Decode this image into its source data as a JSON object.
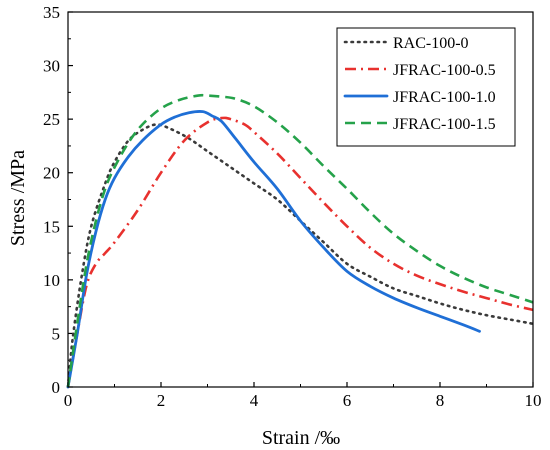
{
  "chart_data": {
    "type": "line",
    "title": "",
    "xlabel": "Strain /‰",
    "ylabel": "Stress /MPa",
    "xlim": [
      0,
      10
    ],
    "ylim": [
      0,
      35
    ],
    "xticks": [
      "0",
      "2",
      "4",
      "6",
      "8",
      "10"
    ],
    "yticks": [
      "0",
      "5",
      "10",
      "15",
      "20",
      "25",
      "30",
      "35"
    ],
    "grid": false,
    "legend_position": "top-right",
    "series": [
      {
        "name": "RAC-100-0",
        "color": "#3a3a3a",
        "dash": "dotted",
        "x": [
          0,
          0.1,
          0.3,
          0.5,
          0.8,
          1.0,
          1.3,
          1.6,
          1.9,
          2.2,
          2.6,
          3.0,
          3.5,
          4.0,
          4.5,
          5.0,
          5.5,
          6.0,
          6.5,
          7.0,
          7.5,
          8.0,
          8.5,
          9.0,
          9.5,
          10.0
        ],
        "y": [
          0,
          4.5,
          10.5,
          15.0,
          19.0,
          21.0,
          23.0,
          24.0,
          24.5,
          24.1,
          23.2,
          22.0,
          20.5,
          19.0,
          17.5,
          15.5,
          13.5,
          11.5,
          10.3,
          9.2,
          8.5,
          7.8,
          7.2,
          6.7,
          6.3,
          5.9
        ]
      },
      {
        "name": "JFRAC-100-0.5",
        "color": "#e8312e",
        "dash": "dashdot",
        "x": [
          0,
          0.2,
          0.4,
          0.6,
          0.8,
          1.0,
          1.5,
          2.0,
          2.5,
          3.0,
          3.3,
          3.5,
          3.8,
          4.0,
          4.5,
          5.0,
          5.5,
          6.0,
          6.5,
          7.0,
          7.5,
          8.0,
          8.5,
          9.0,
          9.5,
          10.0
        ],
        "y": [
          0,
          5.0,
          9.5,
          11.5,
          12.5,
          13.5,
          16.5,
          20.0,
          23.0,
          24.7,
          25.1,
          25.0,
          24.5,
          23.8,
          21.8,
          19.5,
          17.2,
          15.0,
          13.0,
          11.5,
          10.4,
          9.6,
          8.9,
          8.3,
          7.7,
          7.2
        ]
      },
      {
        "name": "JFRAC-100-1.0",
        "color": "#1f6fd6",
        "dash": "dashdotlong",
        "x": [
          0,
          0.2,
          0.4,
          0.6,
          0.8,
          1.0,
          1.3,
          1.6,
          2.0,
          2.3,
          2.6,
          2.9,
          3.1,
          3.3,
          3.6,
          4.0,
          4.5,
          5.0,
          5.5,
          6.0,
          6.5,
          7.0,
          7.5,
          8.0,
          8.5,
          8.85
        ],
        "y": [
          0,
          5.0,
          10.5,
          14.5,
          17.5,
          19.5,
          21.5,
          23.0,
          24.5,
          25.2,
          25.6,
          25.7,
          25.3,
          24.8,
          23.2,
          21.0,
          18.5,
          15.5,
          13.0,
          10.8,
          9.4,
          8.3,
          7.4,
          6.6,
          5.8,
          5.2
        ]
      },
      {
        "name": "JFRAC-100-1.5",
        "color": "#25a24a",
        "dash": "dashed",
        "x": [
          0,
          0.2,
          0.4,
          0.6,
          0.8,
          1.0,
          1.3,
          1.6,
          2.0,
          2.4,
          2.8,
          3.0,
          3.3,
          3.6,
          4.0,
          4.5,
          5.0,
          5.5,
          6.0,
          6.5,
          7.0,
          7.5,
          8.0,
          8.5,
          9.0,
          9.5,
          10.0
        ],
        "y": [
          0,
          6.0,
          11.5,
          15.5,
          18.5,
          20.5,
          22.8,
          24.5,
          26.0,
          26.8,
          27.2,
          27.2,
          27.1,
          26.9,
          26.2,
          24.7,
          22.8,
          20.6,
          18.5,
          16.3,
          14.3,
          12.7,
          11.3,
          10.2,
          9.3,
          8.6,
          7.9
        ]
      }
    ]
  }
}
